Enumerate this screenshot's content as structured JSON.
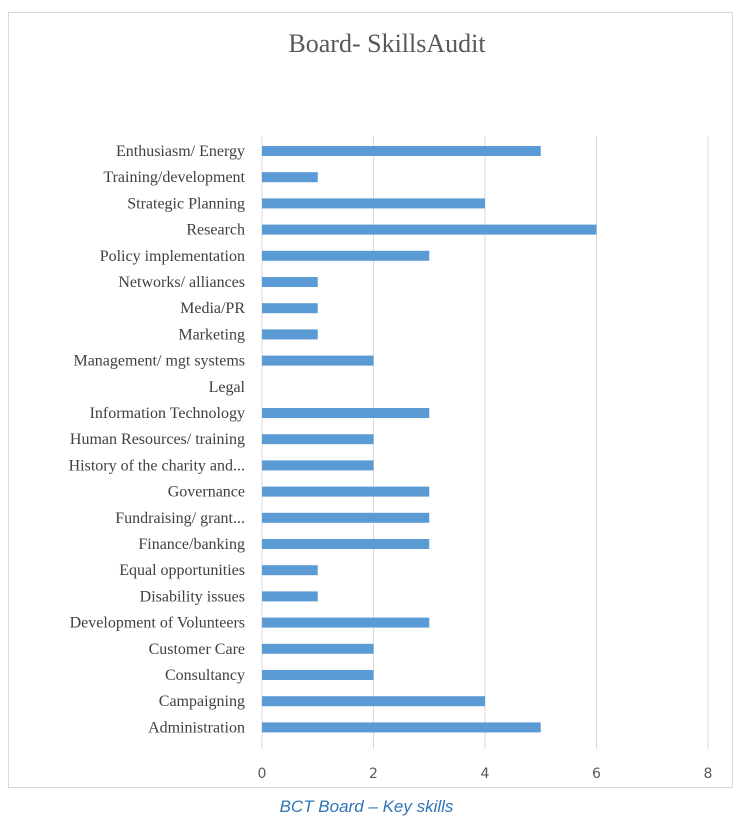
{
  "chart_data": {
    "type": "bar",
    "orientation": "horizontal",
    "title": "Board- SkillsAudit",
    "categories": [
      "Enthusiasm/ Energy",
      "Training/development",
      "Strategic Planning",
      "Research",
      "Policy implementation",
      "Networks/ alliances",
      "Media/PR",
      "Marketing",
      "Management/ mgt systems",
      "Legal",
      "Information Technology",
      "Human Resources/ training",
      "History of the charity and...",
      "Governance",
      "Fundraising/ grant...",
      "Finance/banking",
      "Equal opportunities",
      "Disability issues",
      "Development of Volunteers",
      "Customer Care",
      "Consultancy",
      "Campaigning",
      "Administration"
    ],
    "values": [
      5,
      1,
      4,
      6,
      3,
      1,
      1,
      1,
      2,
      0,
      3,
      2,
      2,
      3,
      3,
      3,
      1,
      1,
      3,
      2,
      2,
      4,
      5
    ],
    "xlim": [
      0,
      8
    ],
    "xticks": [
      "0",
      "2",
      "4",
      "6",
      "8"
    ],
    "xlabel": "",
    "ylabel": "",
    "grid": "vertical",
    "bar_color": "#5b9bd5"
  },
  "caption": "BCT Board – Key skills"
}
